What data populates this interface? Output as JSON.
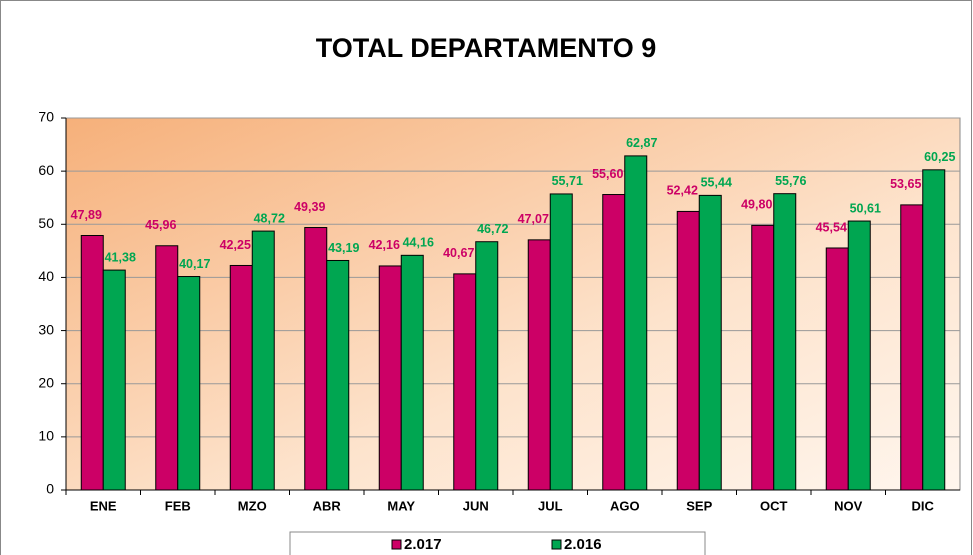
{
  "chart_data": {
    "type": "bar",
    "title": "TOTAL DEPARTAMENTO 9",
    "categories": [
      "ENE",
      "FEB",
      "MZO",
      "ABR",
      "MAY",
      "JUN",
      "JUL",
      "AGO",
      "SEP",
      "OCT",
      "NOV",
      "DIC"
    ],
    "series": [
      {
        "name": "2.017",
        "color": "#cc0066",
        "values": [
          47.89,
          45.96,
          42.25,
          49.39,
          42.16,
          40.67,
          47.07,
          55.6,
          52.42,
          49.8,
          45.54,
          53.65
        ],
        "value_labels": [
          "47,89",
          "45,96",
          "42,25",
          "49,39",
          "42,16",
          "40,67",
          "47,07",
          "55,60",
          "52,42",
          "49,80",
          "45,54",
          "53,65"
        ]
      },
      {
        "name": "2.016",
        "color": "#00a651",
        "values": [
          41.38,
          40.17,
          48.72,
          43.19,
          44.16,
          46.72,
          55.71,
          62.87,
          55.44,
          55.76,
          50.61,
          60.25
        ],
        "value_labels": [
          "41,38",
          "40,17",
          "48,72",
          "43,19",
          "44,16",
          "46,72",
          "55,71",
          "62,87",
          "55,44",
          "55,76",
          "50,61",
          "60,25"
        ]
      }
    ],
    "ylim": [
      0,
      70
    ],
    "yticks": [
      0,
      10,
      20,
      30,
      40,
      50,
      60,
      70
    ],
    "grid": true,
    "legend": "bottom"
  }
}
